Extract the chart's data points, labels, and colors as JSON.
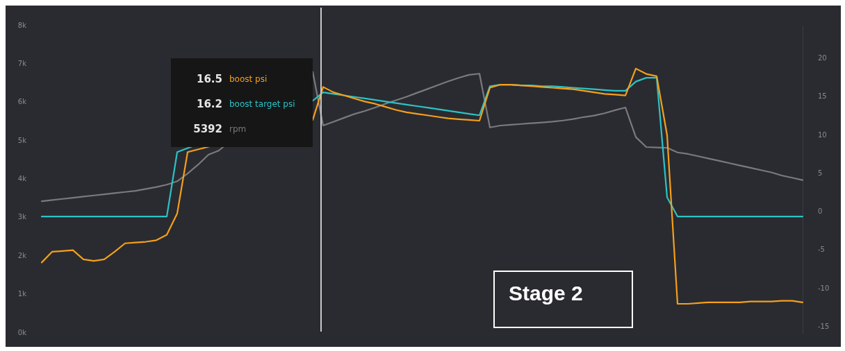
{
  "chart_data": {
    "type": "line",
    "categories": [
      null,
      null,
      null,
      null,
      null,
      null,
      null,
      null,
      null,
      null,
      null,
      null,
      null,
      null,
      null,
      null,
      null,
      null,
      null,
      null,
      null,
      null,
      null,
      null,
      null,
      null,
      null,
      null,
      null,
      null,
      null,
      null,
      null,
      null,
      null,
      null,
      null,
      null,
      null,
      null,
      null,
      null,
      null,
      null,
      null,
      null,
      null,
      null,
      null,
      null,
      null,
      null,
      null,
      null,
      null,
      null,
      null,
      null,
      null,
      null,
      null,
      null,
      null,
      null,
      null,
      null,
      null,
      null,
      null,
      null,
      null,
      null,
      null,
      null
    ],
    "series": [
      {
        "name": "boost psi",
        "color": "#f5a01a",
        "axis": "y2",
        "values": [
          -6.6,
          -5.2,
          -5.1,
          -5.0,
          -6.2,
          -6.4,
          -6.2,
          -5.2,
          -4.1,
          -4.0,
          -3.9,
          -3.7,
          -3.0,
          -0.2,
          7.8,
          null,
          null,
          null,
          null,
          null,
          null,
          null,
          null,
          null,
          null,
          null,
          12.0,
          16.3,
          15.6,
          15.2,
          14.8,
          14.4,
          14.1,
          13.7,
          13.3,
          13.0,
          12.8,
          12.6,
          12.4,
          12.2,
          12.1,
          12.0,
          11.9,
          16.2,
          16.6,
          16.6,
          16.5,
          16.4,
          16.3,
          16.2,
          16.1,
          16.0,
          15.8,
          15.6,
          15.4,
          15.3,
          15.2,
          18.7,
          18.0,
          17.7,
          10.0,
          -12.0,
          -12.0,
          -11.9,
          -11.8,
          -11.8,
          -11.8,
          -11.8,
          -11.7,
          -11.7,
          -11.7,
          -11.6,
          -11.6,
          -11.8
        ]
      },
      {
        "name": "boost target psi",
        "color": "#2bc3c6",
        "axis": "y2",
        "values": [
          -0.6,
          -0.6,
          -0.6,
          -0.6,
          -0.6,
          -0.6,
          -0.6,
          -0.6,
          -0.6,
          -0.6,
          -0.6,
          -0.6,
          -0.6,
          7.8,
          null,
          null,
          null,
          null,
          null,
          null,
          null,
          null,
          null,
          null,
          null,
          null,
          14.5,
          15.6,
          15.4,
          15.2,
          15.0,
          14.8,
          14.6,
          14.4,
          14.2,
          14.0,
          13.8,
          13.6,
          13.4,
          13.2,
          13.0,
          12.8,
          12.6,
          16.4,
          16.6,
          16.6,
          16.5,
          16.5,
          16.4,
          16.4,
          16.3,
          16.2,
          16.1,
          16.0,
          15.9,
          15.8,
          15.8,
          17.0,
          17.5,
          17.5,
          1.9,
          -0.6,
          -0.6,
          -0.6,
          -0.6,
          -0.6,
          -0.6,
          -0.6,
          -0.6,
          -0.6,
          -0.6,
          -0.6,
          -0.6,
          -0.6
        ]
      },
      {
        "name": "rpm",
        "color": "#7a7a7e",
        "axis": "y",
        "values": [
          3430,
          3460,
          3490,
          3520,
          3550,
          3580,
          3610,
          3640,
          3670,
          3700,
          3750,
          3800,
          3860,
          3950,
          4150,
          4380,
          4640,
          4750,
          null,
          null,
          null,
          null,
          null,
          null,
          null,
          null,
          6800,
          5400,
          5500,
          5600,
          5700,
          5780,
          5870,
          5970,
          6060,
          6150,
          6250,
          6350,
          6450,
          6550,
          6640,
          6720,
          6750,
          5350,
          5400,
          5420,
          5440,
          5460,
          5480,
          5500,
          5530,
          5570,
          5620,
          5660,
          5720,
          5800,
          5870,
          5100,
          4840,
          4830,
          4820,
          4700,
          4660,
          4600,
          4540,
          4480,
          4420,
          4360,
          4300,
          4240,
          4180,
          4100,
          4040,
          3980
        ]
      }
    ],
    "ylim": [
      0,
      8000
    ],
    "yticks": [
      {
        "value": 0,
        "label": "0k"
      },
      {
        "value": 1000,
        "label": "1k"
      },
      {
        "value": 2000,
        "label": "2k"
      },
      {
        "value": 3000,
        "label": "3k"
      },
      {
        "value": 4000,
        "label": "4k"
      },
      {
        "value": 5000,
        "label": "5k"
      },
      {
        "value": 6000,
        "label": "6k"
      },
      {
        "value": 7000,
        "label": "7k"
      },
      {
        "value": 8000,
        "label": "8k"
      }
    ],
    "y2lim": [
      -15.8,
      24.3
    ],
    "y2ticks": [
      -15,
      -10,
      -5,
      0,
      5,
      10,
      15,
      20
    ],
    "legend": "top left",
    "marker": "none",
    "line_style": "solid",
    "annotations": [
      "16.5",
      "16.2",
      "5392",
      "Stage 2"
    ]
  }
}
